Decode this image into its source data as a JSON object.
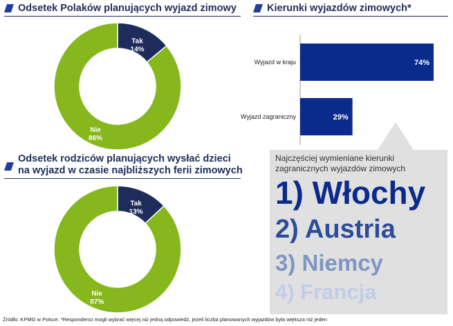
{
  "headers": {
    "travel_plans": "Odsetek Polaków planujących wyjazd zimowy",
    "directions": "Kierunki wyjazdów zimowych*",
    "parents_line1": "Odsetek rodziców planujących wysłać dzieci",
    "parents_line2": "na wyjazd w czasie najbliższych ferii zimowych"
  },
  "colors": {
    "green": "#86b81e",
    "navy": "#1e2c5b",
    "bar_blue": "#0a2a8c",
    "panel_gray": "#e0e0e0"
  },
  "chart_data": [
    {
      "type": "pie",
      "title": "Odsetek Polaków planujących wyjazd zimowy",
      "labels": [
        "Tak",
        "Nie"
      ],
      "values": [
        14,
        86
      ],
      "value_labels": [
        "14%",
        "86%"
      ],
      "donut": true
    },
    {
      "type": "bar",
      "orientation": "horizontal",
      "title": "Kierunki wyjazdów zimowych*",
      "categories": [
        "Wyjazd w kraju",
        "Wyjazd zagraniczny"
      ],
      "values": [
        74,
        29
      ],
      "value_labels": [
        "74%",
        "29%"
      ]
    },
    {
      "type": "pie",
      "title": "Odsetek rodziców planujących wysłać dzieci na wyjazd w czasie najbliższych ferii zimowych",
      "labels": [
        "Tak",
        "Nie"
      ],
      "values": [
        13,
        87
      ],
      "value_labels": [
        "13%",
        "87%"
      ],
      "donut": true
    }
  ],
  "ranking": {
    "caption": "Najczęściej wymieniane kierunki zagranicznych wyjazdów zimowych",
    "items": [
      "1) Włochy",
      "2) Austria",
      "3) Niemcy",
      "4) Francja"
    ],
    "colors": [
      "#0a2a8c",
      "#2b4d9a",
      "#7f96c4",
      "#c2cde6"
    ]
  },
  "source": "Źródło: KPMG w Polsce. *Respondenci mogli wybrać więcej niż jedną odpowiedź, jeżeli liczba planowanych wyjazdów była większa niż jeden"
}
